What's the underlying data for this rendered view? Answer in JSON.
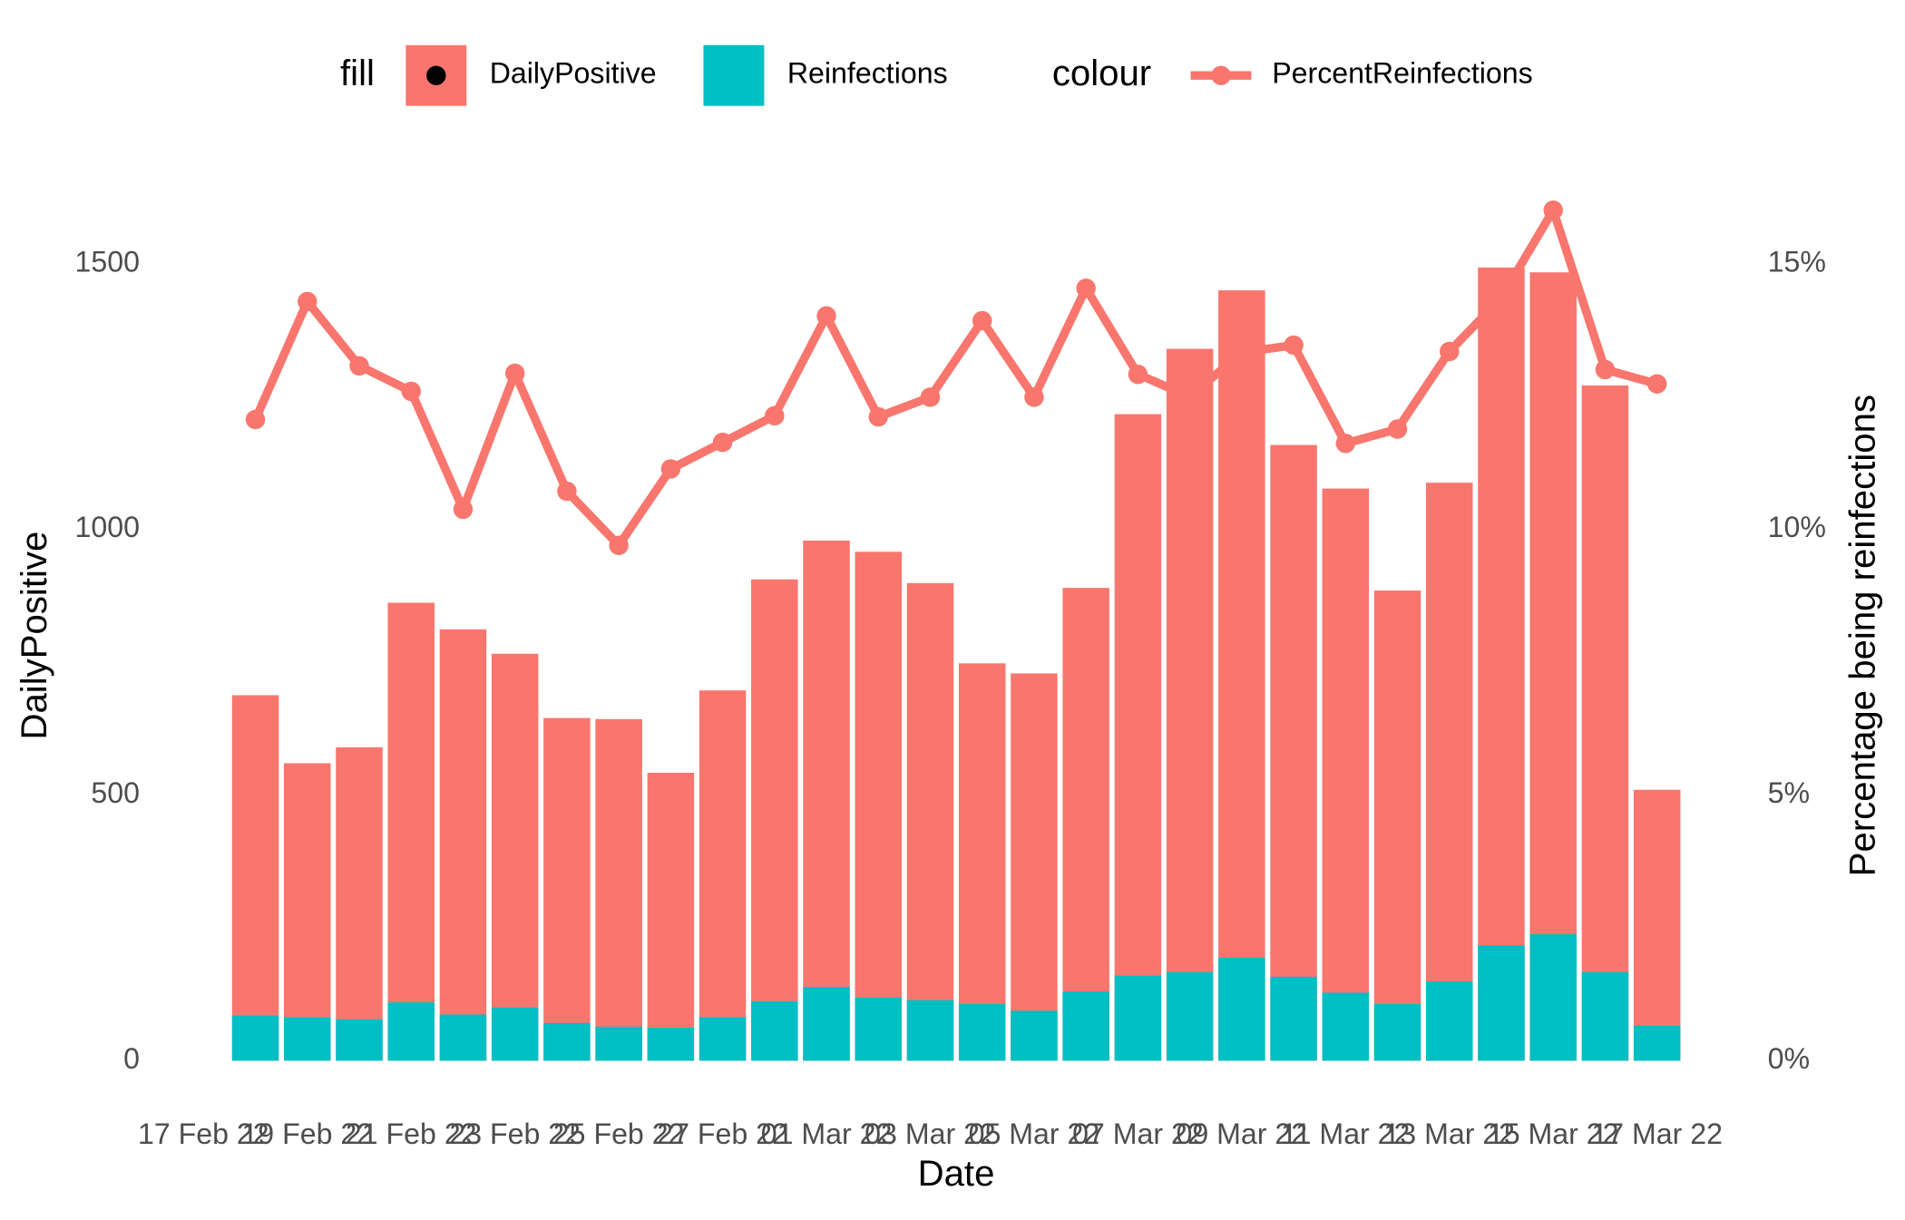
{
  "chart_data": {
    "type": "bar",
    "x_label": "Date",
    "y_label": "DailyPositive",
    "y2_label": "Percentage being reinfections",
    "legend": {
      "fill_title": "fill",
      "colour_title": "colour"
    },
    "x": [
      "2022-02-18",
      "2022-02-19",
      "2022-02-20",
      "2022-02-21",
      "2022-02-22",
      "2022-02-23",
      "2022-02-24",
      "2022-02-25",
      "2022-02-26",
      "2022-02-27",
      "2022-02-28",
      "2022-03-01",
      "2022-03-02",
      "2022-03-03",
      "2022-03-04",
      "2022-03-05",
      "2022-03-06",
      "2022-03-07",
      "2022-03-08",
      "2022-03-09",
      "2022-03-10",
      "2022-03-11",
      "2022-03-12",
      "2022-03-13",
      "2022-03-14",
      "2022-03-15",
      "2022-03-16",
      "2022-03-17"
    ],
    "xlim": [
      "2022-02-17",
      "2022-03-17"
    ],
    "xticks": [
      {
        "value": "2022-02-17",
        "label": "17 Feb 22"
      },
      {
        "value": "2022-02-19",
        "label": "19 Feb 22"
      },
      {
        "value": "2022-02-21",
        "label": "21 Feb 22"
      },
      {
        "value": "2022-02-23",
        "label": "23 Feb 22"
      },
      {
        "value": "2022-02-25",
        "label": "25 Feb 22"
      },
      {
        "value": "2022-02-27",
        "label": "27 Feb 22"
      },
      {
        "value": "2022-03-01",
        "label": "01 Mar 22"
      },
      {
        "value": "2022-03-03",
        "label": "03 Mar 22"
      },
      {
        "value": "2022-03-05",
        "label": "05 Mar 22"
      },
      {
        "value": "2022-03-07",
        "label": "07 Mar 22"
      },
      {
        "value": "2022-03-09",
        "label": "09 Mar 22"
      },
      {
        "value": "2022-03-11",
        "label": "11 Mar 22"
      },
      {
        "value": "2022-03-13",
        "label": "13 Mar 22"
      },
      {
        "value": "2022-03-15",
        "label": "15 Mar 22"
      },
      {
        "value": "2022-03-17",
        "label": "17 Mar 22"
      }
    ],
    "ylim": [
      0,
      1630
    ],
    "yticks": [
      0,
      500,
      1000,
      1500
    ],
    "y2lim": [
      0,
      16.3
    ],
    "y2ticks": [
      {
        "value": 0,
        "label": "0%"
      },
      {
        "value": 5,
        "label": "5%"
      },
      {
        "value": 10,
        "label": "10%"
      },
      {
        "value": 15,
        "label": "15%"
      }
    ],
    "series": [
      {
        "name": "DailyPositive",
        "color": "#F8766D",
        "values": [
          688,
          560,
          590,
          862,
          812,
          766,
          645,
          643,
          542,
          697,
          906,
          979,
          958,
          899,
          748,
          729,
          890,
          1217,
          1340,
          1450,
          1159,
          1077,
          885,
          1088,
          1493,
          1484,
          1271,
          510
        ]
      },
      {
        "name": "Reinfections",
        "color": "#00BFC4",
        "values": [
          85,
          82,
          78,
          110,
          87,
          100,
          71,
          64,
          62,
          82,
          112,
          139,
          119,
          114,
          107,
          94,
          130,
          160,
          167,
          194,
          158,
          128,
          107,
          149,
          217,
          238,
          167,
          66
        ]
      },
      {
        "name": "PercentReinfections",
        "color": "#F8766D",
        "type": "line",
        "axis": "y2",
        "values": [
          12.07,
          14.29,
          13.08,
          12.6,
          10.38,
          12.94,
          10.72,
          9.7,
          11.14,
          11.64,
          12.14,
          14.02,
          12.12,
          12.49,
          13.93,
          12.49,
          14.54,
          12.92,
          12.5,
          13.33,
          13.47,
          11.62,
          11.89,
          13.35,
          14.36,
          16.01,
          13.01,
          12.74
        ]
      }
    ]
  }
}
